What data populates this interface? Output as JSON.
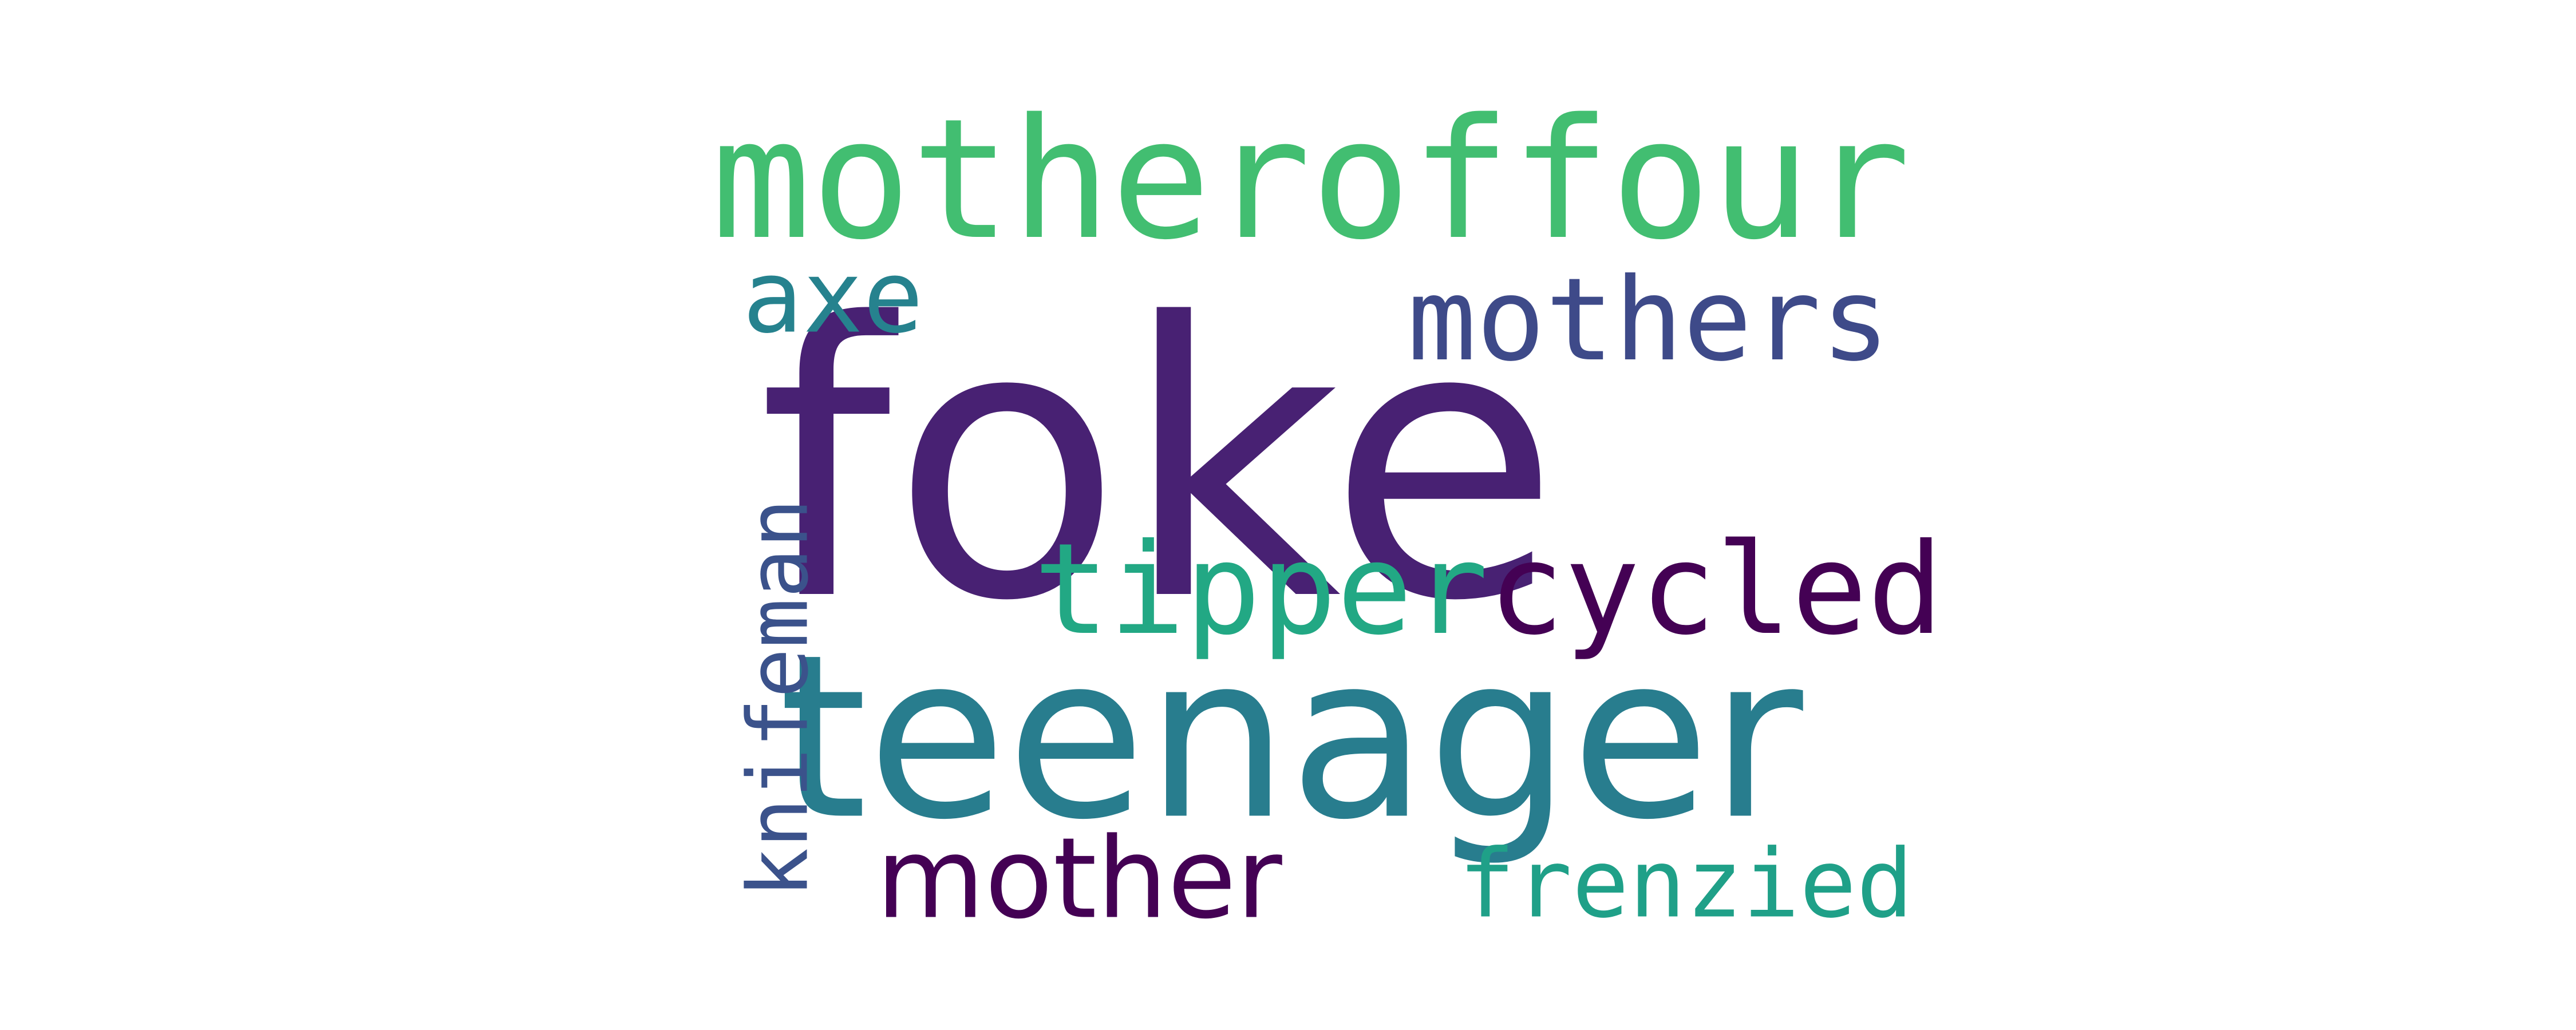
{
  "wordcloud": {
    "background": "#ffffff",
    "words": {
      "foke": {
        "text": "foke",
        "color": "#482173"
      },
      "motheroffour": {
        "text": "motheroffour",
        "color": "#42be71"
      },
      "teenager": {
        "text": "teenager",
        "color": "#287d8e"
      },
      "tippercycled": {
        "text": "tippercycled",
        "color": "#22a884"
      },
      "tippercycled_cycled_color": "#440154",
      "mothers": {
        "text": "mothers",
        "color": "#3e4a89"
      },
      "axe": {
        "text": "axe",
        "color": "#26828e"
      },
      "mother": {
        "text": "mother",
        "color": "#440154"
      },
      "frenzied": {
        "text": "frenzied",
        "color": "#1fa088"
      },
      "knifeman": {
        "text": "knifeman",
        "color": "#3b528b"
      }
    }
  }
}
